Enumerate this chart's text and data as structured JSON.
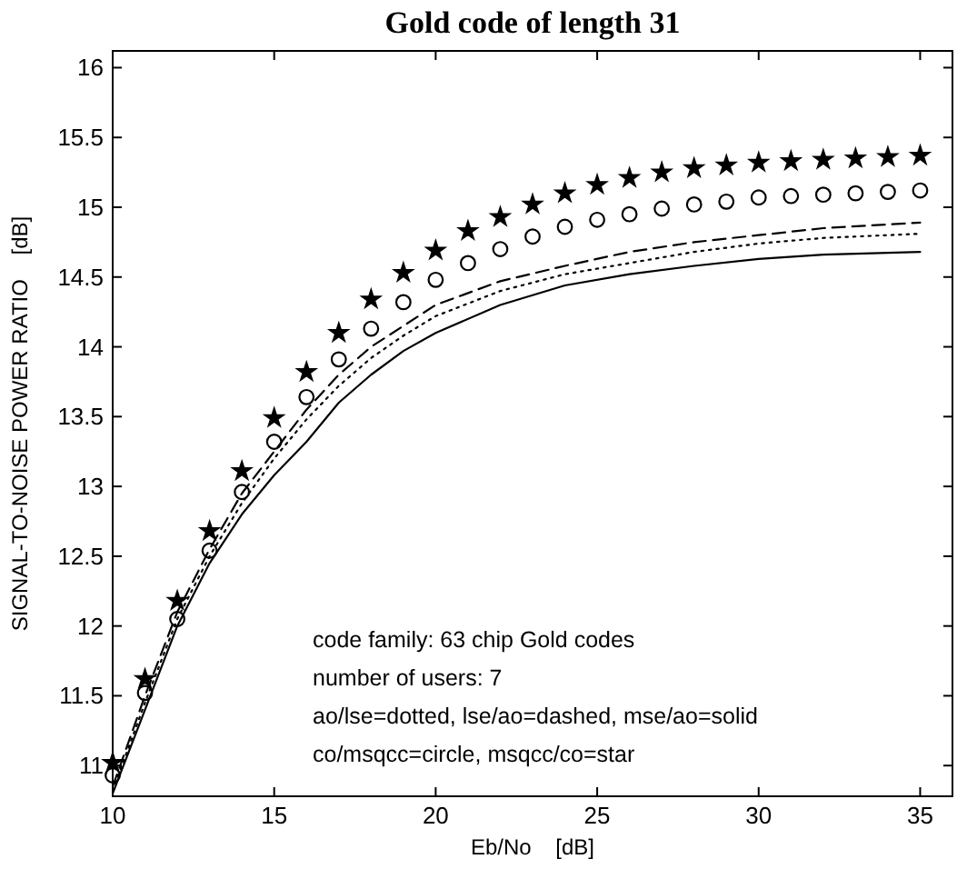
{
  "chart_data": {
    "type": "line",
    "title": "Gold code of length 31",
    "xlabel": "Eb/No    [dB]",
    "ylabel": "SIGNAL-TO-NOISE POWER RATIO    [dB]",
    "xlim": [
      10,
      36
    ],
    "ylim": [
      10.78,
      16.12
    ],
    "xticks": [
      10,
      15,
      20,
      25,
      30,
      35
    ],
    "yticks": [
      11,
      11.5,
      12,
      12.5,
      13,
      13.5,
      14,
      14.5,
      15,
      15.5,
      16
    ],
    "grid": false,
    "annotations": [
      "code family: 63 chip Gold codes",
      "number of users: 7",
      "ao/lse=dotted, lse/ao=dashed, mse/ao=solid",
      "co/msqcc=circle, msqcc/co=star"
    ],
    "series": [
      {
        "type": "line",
        "line_style": "dotted",
        "color": "#000000",
        "x": [
          10,
          11,
          12,
          13,
          14,
          15,
          16,
          17,
          18,
          19,
          20,
          22,
          24,
          26,
          28,
          30,
          32,
          35
        ],
        "values": [
          10.82,
          11.45,
          12.05,
          12.5,
          12.88,
          13.2,
          13.48,
          13.72,
          13.92,
          14.08,
          14.22,
          14.4,
          14.52,
          14.6,
          14.68,
          14.74,
          14.78,
          14.81
        ]
      },
      {
        "type": "line",
        "line_style": "dashed",
        "color": "#000000",
        "x": [
          10,
          11,
          12,
          13,
          14,
          15,
          16,
          17,
          18,
          19,
          20,
          22,
          24,
          26,
          28,
          30,
          32,
          35
        ],
        "values": [
          10.85,
          11.5,
          12.1,
          12.55,
          12.95,
          13.25,
          13.55,
          13.8,
          14.0,
          14.15,
          14.3,
          14.47,
          14.58,
          14.68,
          14.75,
          14.8,
          14.85,
          14.89
        ]
      },
      {
        "type": "line",
        "line_style": "solid",
        "color": "#000000",
        "x": [
          10,
          11,
          12,
          13,
          14,
          15,
          16,
          17,
          18,
          19,
          20,
          22,
          24,
          26,
          28,
          30,
          32,
          35
        ],
        "values": [
          10.8,
          11.4,
          12.0,
          12.45,
          12.8,
          13.08,
          13.32,
          13.6,
          13.8,
          13.97,
          14.1,
          14.3,
          14.44,
          14.52,
          14.58,
          14.63,
          14.66,
          14.68
        ]
      },
      {
        "type": "scatter",
        "marker": "circle",
        "color": "#000000",
        "x": [
          10,
          11,
          12,
          13,
          14,
          15,
          16,
          17,
          18,
          19,
          20,
          21,
          22,
          23,
          24,
          25,
          26,
          27,
          28,
          29,
          30,
          31,
          32,
          33,
          34,
          35
        ],
        "values": [
          10.93,
          11.52,
          12.05,
          12.54,
          12.96,
          13.32,
          13.64,
          13.91,
          14.13,
          14.32,
          14.48,
          14.6,
          14.7,
          14.79,
          14.86,
          14.91,
          14.95,
          14.99,
          15.02,
          15.04,
          15.07,
          15.08,
          15.09,
          15.1,
          15.11,
          15.12
        ]
      },
      {
        "type": "scatter",
        "marker": "star",
        "color": "#000000",
        "x": [
          10,
          11,
          12,
          13,
          14,
          15,
          16,
          17,
          18,
          19,
          20,
          21,
          22,
          23,
          24,
          25,
          26,
          27,
          28,
          29,
          30,
          31,
          32,
          33,
          34,
          35
        ],
        "values": [
          11.02,
          11.62,
          12.18,
          12.68,
          13.11,
          13.49,
          13.82,
          14.1,
          14.34,
          14.53,
          14.69,
          14.83,
          14.93,
          15.02,
          15.1,
          15.16,
          15.21,
          15.25,
          15.28,
          15.3,
          15.32,
          15.33,
          15.34,
          15.35,
          15.36,
          15.37
        ]
      }
    ]
  }
}
